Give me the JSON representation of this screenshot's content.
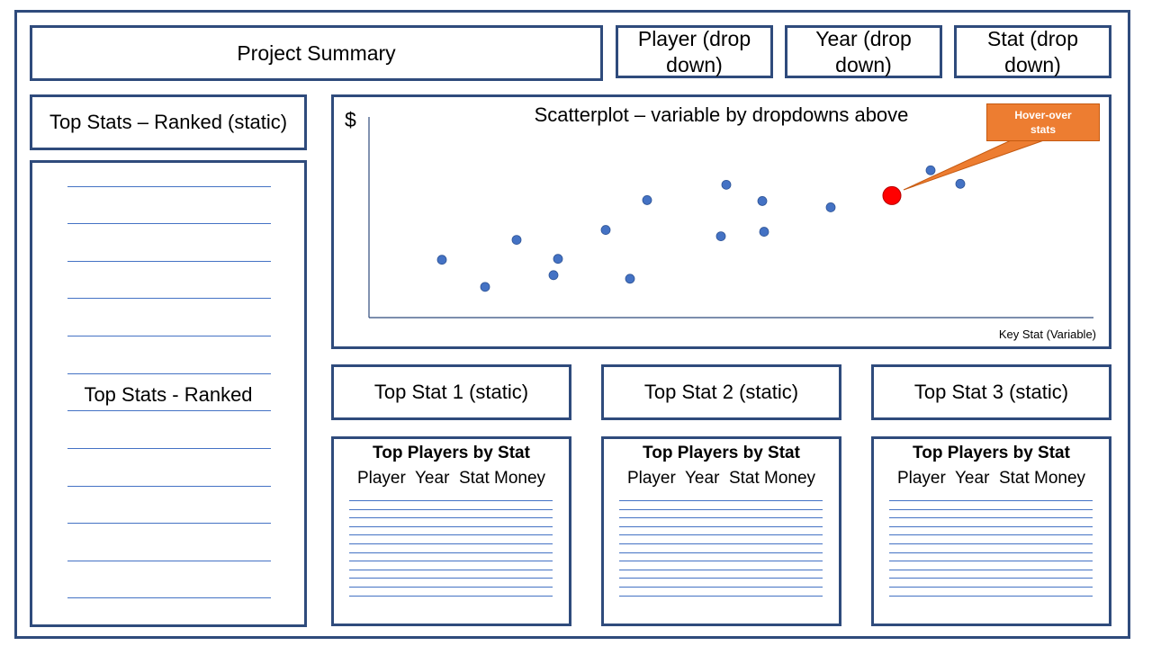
{
  "header": {
    "project_summary": "Project Summary",
    "dropdowns": [
      {
        "label": "Player (drop down)"
      },
      {
        "label": "Year (drop down)"
      },
      {
        "label": "Stat (drop down)"
      }
    ]
  },
  "left_panel": {
    "title": "Top Stats – Ranked (static)",
    "list_label": "Top Stats - Ranked"
  },
  "scatter": {
    "title": "Scatterplot – variable by dropdowns above",
    "y_label": "$",
    "x_label": "Key Stat (Variable)",
    "callout": "Hover-over stats"
  },
  "chart_data": {
    "type": "scatter",
    "title": "Scatterplot – variable by dropdowns above",
    "xlabel": "Key Stat (Variable)",
    "ylabel": "$",
    "points": [
      {
        "x": 81,
        "y": 64
      },
      {
        "x": 129,
        "y": 34
      },
      {
        "x": 164,
        "y": 86
      },
      {
        "x": 205,
        "y": 47
      },
      {
        "x": 210,
        "y": 65
      },
      {
        "x": 263,
        "y": 97
      },
      {
        "x": 290,
        "y": 43
      },
      {
        "x": 309,
        "y": 130
      },
      {
        "x": 391,
        "y": 90
      },
      {
        "x": 397,
        "y": 147
      },
      {
        "x": 437,
        "y": 129
      },
      {
        "x": 439,
        "y": 95
      },
      {
        "x": 513,
        "y": 122
      },
      {
        "x": 624,
        "y": 163
      },
      {
        "x": 657,
        "y": 148
      }
    ],
    "highlight": {
      "x": 581,
      "y": 135,
      "color": "#ff0000"
    },
    "point_color": "#4472c4",
    "xlim": [
      0,
      805
    ],
    "ylim": [
      0,
      222
    ],
    "grid": false
  },
  "stat_cards": [
    {
      "title": "Top Stat 1 (static)",
      "table_title": "Top Players by Stat",
      "columns": "Player  Year  Stat Money"
    },
    {
      "title": "Top Stat 2 (static)",
      "table_title": "Top Players by Stat",
      "columns": "Player  Year  Stat Money"
    },
    {
      "title": "Top Stat 3 (static)",
      "table_title": "Top Players by Stat",
      "columns": "Player  Year  Stat Money"
    }
  ],
  "colors": {
    "border": "#2f4b7c",
    "rule": "#4472c4",
    "point": "#4472c4",
    "highlight": "#ff0000",
    "callout": "#ed7d31"
  }
}
